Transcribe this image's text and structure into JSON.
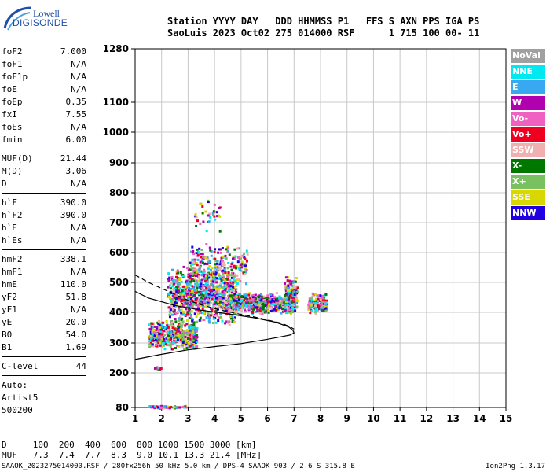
{
  "logo": {
    "line1": "Lowell",
    "line2": "DIGISONDE"
  },
  "header": {
    "line1": "Station YYYY DAY   DDD HHMMSS P1   FFS S AXN PPS IGA PS",
    "line2": "SaoLuis 2023 Oct02 275 014000 RSF      1 715 100 00- 11"
  },
  "params": {
    "g1": [
      {
        "label": "foF2",
        "value": "7.000"
      },
      {
        "label": "foF1",
        "value": "N/A"
      },
      {
        "label": "foF1p",
        "value": "N/A"
      },
      {
        "label": "foE",
        "value": "N/A"
      },
      {
        "label": "foEp",
        "value": "0.35"
      },
      {
        "label": "fxI",
        "value": "7.55"
      },
      {
        "label": "foEs",
        "value": "N/A"
      },
      {
        "label": "fmin",
        "value": "6.00"
      }
    ],
    "g2": [
      {
        "label": "MUF(D)",
        "value": "21.44"
      },
      {
        "label": "M(D)",
        "value": "3.06"
      },
      {
        "label": "D",
        "value": "N/A"
      }
    ],
    "g3": [
      {
        "label": "h`F",
        "value": "390.0"
      },
      {
        "label": "h`F2",
        "value": "390.0"
      },
      {
        "label": "h`E",
        "value": "N/A"
      },
      {
        "label": "h`Es",
        "value": "N/A"
      }
    ],
    "g4": [
      {
        "label": "hmF2",
        "value": "338.1"
      },
      {
        "label": "hmF1",
        "value": "N/A"
      },
      {
        "label": "hmE",
        "value": "110.0"
      },
      {
        "label": "yF2",
        "value": "51.8"
      },
      {
        "label": "yF1",
        "value": "N/A"
      },
      {
        "label": "yE",
        "value": "20.0"
      },
      {
        "label": "B0",
        "value": "54.0"
      },
      {
        "label": "B1",
        "value": "1.69"
      }
    ],
    "clevel": {
      "label": "C-level",
      "value": "44"
    },
    "auto": [
      "Auto:",
      "Artist5",
      "500200"
    ]
  },
  "legend": [
    {
      "label": "NoVal",
      "color": "#a0a0a0"
    },
    {
      "label": "NNE",
      "color": "#00e8f0"
    },
    {
      "label": "E",
      "color": "#38a8f0"
    },
    {
      "label": "W",
      "color": "#b000b0"
    },
    {
      "label": "Vo-",
      "color": "#f060c0"
    },
    {
      "label": "Vo+",
      "color": "#f00020"
    },
    {
      "label": "SSW",
      "color": "#f0b0b0"
    },
    {
      "label": "X-",
      "color": "#007800"
    },
    {
      "label": "X+",
      "color": "#78c060"
    },
    {
      "label": "SSE",
      "color": "#d8d800"
    },
    {
      "label": "NNW",
      "color": "#2000e0"
    }
  ],
  "footer": {
    "line1": "D     100  200  400  600  800 1000 1500 3000 [km]",
    "line2": "MUF   7.3  7.4  7.7  8.3  9.0 10.1 13.3 21.4 [MHz]",
    "filename": "SAAOK_2023275014000.RSF / 280fx256h 50 kHz 5.0 km / DPS-4 SAAOK 903 / 2.6 S 315.8 E",
    "version": "Ion2Png 1.3.17"
  },
  "chart_data": {
    "type": "scatter",
    "x_ticks": [
      1,
      2,
      3,
      4,
      5,
      6,
      7,
      8,
      9,
      10,
      11,
      12,
      13,
      14,
      15
    ],
    "y_ticks": [
      80,
      200,
      300,
      400,
      500,
      600,
      700,
      800,
      900,
      1000,
      1100,
      1280
    ],
    "xlim": [
      1,
      15
    ],
    "ylim": [
      80,
      1280
    ],
    "y_scale": "nonlinear",
    "grid": true,
    "profile_solid": [
      [
        1.0,
        245
      ],
      [
        2.0,
        262
      ],
      [
        3.0,
        277
      ],
      [
        4.0,
        288
      ],
      [
        5.0,
        298
      ],
      [
        6.0,
        312
      ],
      [
        6.5,
        320
      ],
      [
        6.85,
        326
      ],
      [
        7.0,
        333
      ],
      [
        6.95,
        342
      ],
      [
        6.8,
        352
      ],
      [
        6.3,
        368
      ],
      [
        5.5,
        382
      ],
      [
        4.5,
        395
      ],
      [
        3.5,
        407
      ],
      [
        2.5,
        423
      ],
      [
        1.5,
        448
      ],
      [
        1.0,
        470
      ]
    ],
    "trace_dashed": [
      [
        1.0,
        525
      ],
      [
        1.5,
        500
      ],
      [
        2.0,
        480
      ],
      [
        2.5,
        460
      ],
      [
        3.0,
        440
      ],
      [
        3.5,
        425
      ],
      [
        4.0,
        413
      ],
      [
        4.5,
        402
      ],
      [
        5.0,
        393
      ],
      [
        5.5,
        385
      ],
      [
        6.0,
        375
      ],
      [
        6.5,
        365
      ],
      [
        6.8,
        355
      ],
      [
        7.0,
        345
      ]
    ],
    "echo_clusters": [
      {
        "x": [
          1.5,
          3.3
        ],
        "y": [
          280,
          380
        ],
        "n": 520
      },
      {
        "x": [
          2.2,
          4.8
        ],
        "y": [
          360,
          560
        ],
        "n": 900
      },
      {
        "x": [
          3.0,
          5.2
        ],
        "y": [
          480,
          640
        ],
        "n": 260
      },
      {
        "x": [
          4.5,
          7.0
        ],
        "y": [
          395,
          470
        ],
        "n": 520
      },
      {
        "x": [
          6.6,
          7.1
        ],
        "y": [
          400,
          530
        ],
        "n": 120
      },
      {
        "x": [
          7.5,
          8.2
        ],
        "y": [
          395,
          470
        ],
        "n": 150
      },
      {
        "x": [
          3.2,
          4.2
        ],
        "y": [
          650,
          800
        ],
        "n": 35
      },
      {
        "x": [
          1.5,
          2.9
        ],
        "y": [
          80,
          90
        ],
        "n": 70
      },
      {
        "x": [
          1.7,
          1.95
        ],
        "y": [
          213,
          223
        ],
        "n": 14
      }
    ]
  }
}
